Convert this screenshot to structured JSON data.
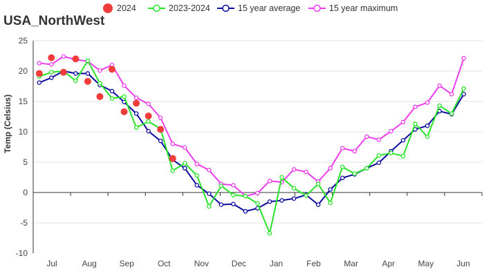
{
  "title": "USA_NorthWest",
  "chart_data": {
    "type": "line",
    "title": "USA_NorthWest",
    "xlabel": "",
    "ylabel": "Temp (Celsius)",
    "ylim": [
      -10,
      25
    ],
    "yticks": [
      -10,
      -5,
      0,
      5,
      10,
      15,
      20,
      25
    ],
    "month_labels": [
      "Jul",
      "Aug",
      "Sep",
      "Oct",
      "Nov",
      "Dec",
      "Jan",
      "Feb",
      "Mar",
      "Apr",
      "May",
      "Jun"
    ],
    "grid": "horizontal",
    "legend_position": "top",
    "x": [
      1,
      2,
      3,
      4,
      5,
      6,
      7,
      8,
      9,
      10,
      11,
      12,
      13,
      14,
      15,
      16,
      17,
      18,
      19,
      20,
      21,
      22,
      23,
      24,
      25,
      26,
      27,
      28,
      29,
      30,
      31,
      32,
      33,
      34,
      35,
      36,
      37
    ],
    "series": [
      {
        "name": "2024",
        "kind": "scatter",
        "color": "#f03c3c",
        "values": [
          19.6,
          22.2,
          19.8,
          22.0,
          18.3,
          15.8,
          20.3,
          13.3,
          14.7,
          12.6,
          10.4,
          5.6,
          null,
          null,
          null,
          null,
          null,
          null,
          null,
          null,
          null,
          null,
          null,
          null,
          null,
          null,
          null,
          null,
          null,
          null,
          null,
          null,
          null,
          null,
          null,
          null,
          null
        ]
      },
      {
        "name": "2023-2024",
        "kind": "line",
        "color": "#26e526",
        "values": [
          19.1,
          19.8,
          20.0,
          18.4,
          21.7,
          18.0,
          15.5,
          15.8,
          10.7,
          11.7,
          10.5,
          3.6,
          4.8,
          2.8,
          -2.3,
          1.1,
          -0.4,
          -0.6,
          -1.8,
          -6.7,
          2.5,
          0.7,
          -0.5,
          1.4,
          -1.7,
          4.2,
          3.1,
          4.0,
          6.1,
          6.5,
          6.0,
          11.3,
          9.2,
          14.3,
          13.0,
          17.1,
          null
        ]
      },
      {
        "name": "15 year average",
        "kind": "line",
        "color": "#0a0aa0",
        "values": [
          18.1,
          18.9,
          20.0,
          19.6,
          19.6,
          17.7,
          16.7,
          14.9,
          13.0,
          10.1,
          8.5,
          5.4,
          4.0,
          1.2,
          -0.2,
          -2.0,
          -1.9,
          -3.1,
          -2.6,
          -1.5,
          -1.3,
          -1.0,
          -0.4,
          -2.0,
          0.5,
          2.4,
          3.0,
          4.0,
          4.9,
          6.8,
          8.6,
          10.4,
          11.0,
          13.4,
          12.9,
          16.2,
          null
        ]
      },
      {
        "name": "15 year maximum",
        "kind": "line",
        "color": "#ee3aee",
        "values": [
          21.3,
          21.1,
          22.4,
          21.9,
          21.6,
          20.1,
          21.0,
          17.6,
          15.6,
          14.6,
          12.3,
          8.0,
          7.4,
          4.7,
          3.7,
          1.4,
          1.2,
          -0.6,
          -0.1,
          1.9,
          1.7,
          3.8,
          3.4,
          1.8,
          4.0,
          7.3,
          6.8,
          9.2,
          8.7,
          10.1,
          11.6,
          14.1,
          14.8,
          17.6,
          16.2,
          22.1,
          null
        ]
      }
    ]
  }
}
